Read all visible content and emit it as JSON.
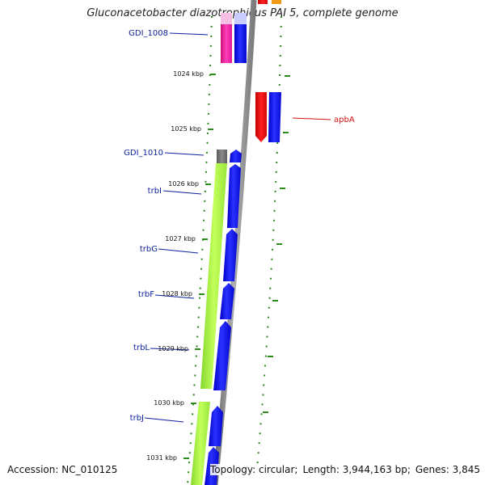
{
  "title": "Gluconacetobacter diazotrophicus PAI 5, complete genome",
  "footer": {
    "accession": "Accession: NC_010125",
    "topology": "Topology: circular;",
    "length": "Length: 3,944,163 bp;",
    "genes": "Genes: 3,845"
  },
  "ticks": [
    "1024 kbp",
    "1025 kbp",
    "1026 kbp",
    "1027 kbp",
    "1028 kbp",
    "1029 kbp",
    "1030 kbp",
    "1031 kbp"
  ],
  "gene_labels": {
    "left": [
      "GDI_1008",
      "GDI_1010",
      "trbI",
      "trbG",
      "trbF",
      "trbL",
      "trbJ"
    ],
    "right": [
      "apbA"
    ]
  },
  "colors": {
    "backbone": "#8c8c8c",
    "tick_dots": "#2a8a1a",
    "left_label": "#0b1f9c",
    "right_label": "#d01010",
    "gene_blue": "#0a12ee",
    "gene_green": "#a8f23a",
    "gene_pink": "#e81ea0",
    "gene_red": "#e60f0f",
    "gene_gray": "#6b6b6b"
  }
}
